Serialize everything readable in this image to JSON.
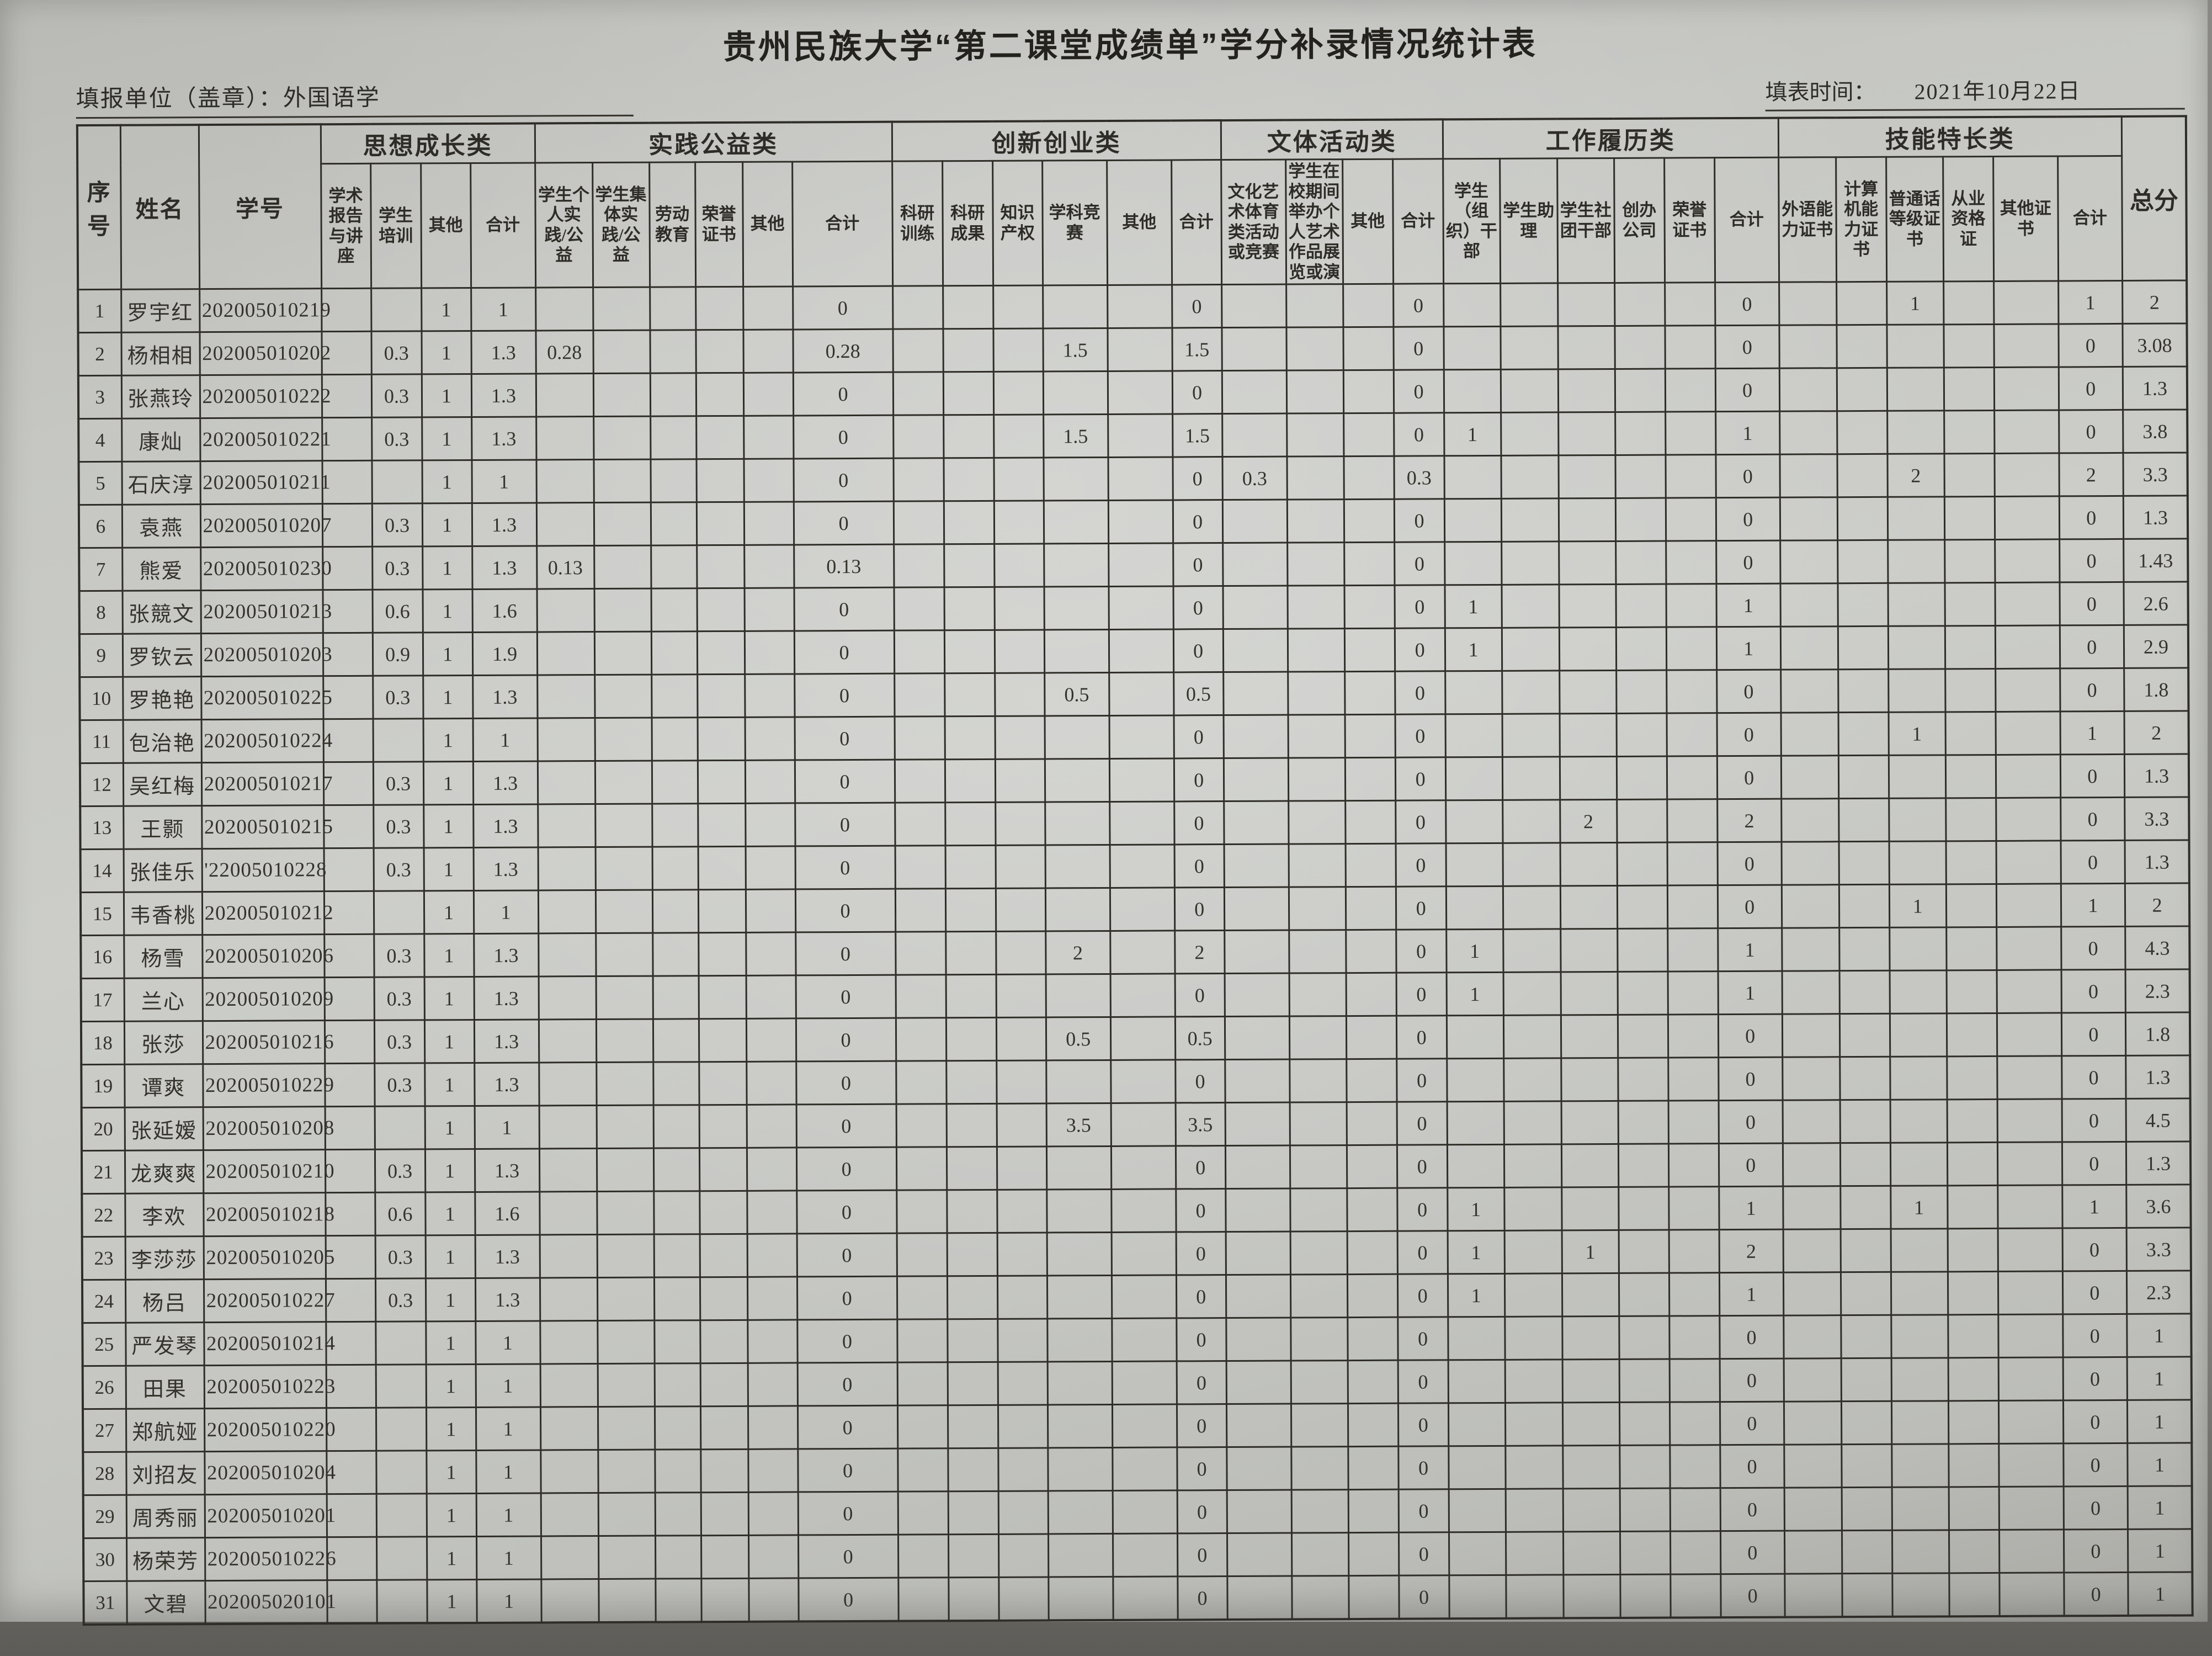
{
  "title": "贵州民族大学“第二课堂成绩单”学分补录情况统计表",
  "meta": {
    "unit_label": "填报单位（盖章）：",
    "unit_value": "外国语学",
    "time_label": "填表时间：",
    "time_value": "2021年10月22日"
  },
  "table": {
    "header": {
      "fixed": [
        "序号",
        "姓名",
        "学号"
      ],
      "groups": [
        {
          "label": "思想成长类",
          "cols": [
            "学术报告与讲座",
            "学生培训",
            "其他",
            "合计"
          ]
        },
        {
          "label": "实践公益类",
          "cols": [
            "学生个人实践/公益",
            "学生集体实践/公益",
            "劳动教育",
            "荣誉证书",
            "其他",
            "合计"
          ]
        },
        {
          "label": "创新创业类",
          "cols": [
            "科研训练",
            "科研成果",
            "知识产权",
            "学科竞赛",
            "其他",
            "合计"
          ]
        },
        {
          "label": "文体活动类",
          "cols": [
            "文化艺术体育类活动或竞赛",
            "学生在校期间举办个人艺术作品展览或演",
            "其他",
            "合计"
          ]
        },
        {
          "label": "工作履历类",
          "cols": [
            "学生（组织）干部",
            "学生助理",
            "学生社团干部",
            "创办公司",
            "荣誉证书",
            "合计"
          ]
        },
        {
          "label": "技能特长类",
          "cols": [
            "外语能力证书",
            "计算机能力证书",
            "普通话等级证书",
            "从业资格证",
            "其他证书",
            "合计"
          ]
        }
      ],
      "total": "总分"
    },
    "rows": [
      [
        "1",
        "罗宇红",
        "202005010219",
        "",
        "",
        "1",
        "1",
        "",
        "",
        "",
        "",
        "",
        "0",
        "",
        "",
        "",
        "",
        "",
        "0",
        "",
        "",
        "",
        "0",
        "",
        "",
        "",
        "",
        "",
        "0",
        "",
        "",
        "1",
        "",
        "",
        "1",
        "2"
      ],
      [
        "2",
        "杨相相",
        "202005010202",
        "",
        "0.3",
        "1",
        "1.3",
        "0.28",
        "",
        "",
        "",
        "",
        "0.28",
        "",
        "",
        "",
        "1.5",
        "",
        "1.5",
        "",
        "",
        "",
        "0",
        "",
        "",
        "",
        "",
        "",
        "0",
        "",
        "",
        "",
        "",
        "",
        "0",
        "3.08"
      ],
      [
        "3",
        "张燕玲",
        "202005010222",
        "",
        "0.3",
        "1",
        "1.3",
        "",
        "",
        "",
        "",
        "",
        "0",
        "",
        "",
        "",
        "",
        "",
        "0",
        "",
        "",
        "",
        "0",
        "",
        "",
        "",
        "",
        "",
        "0",
        "",
        "",
        "",
        "",
        "",
        "0",
        "1.3"
      ],
      [
        "4",
        "康灿",
        "202005010221",
        "",
        "0.3",
        "1",
        "1.3",
        "",
        "",
        "",
        "",
        "",
        "0",
        "",
        "",
        "",
        "1.5",
        "",
        "1.5",
        "",
        "",
        "",
        "0",
        "1",
        "",
        "",
        "",
        "",
        "1",
        "",
        "",
        "",
        "",
        "",
        "0",
        "3.8"
      ],
      [
        "5",
        "石庆淳",
        "202005010211",
        "",
        "",
        "1",
        "1",
        "",
        "",
        "",
        "",
        "",
        "0",
        "",
        "",
        "",
        "",
        "",
        "0",
        "0.3",
        "",
        "",
        "0.3",
        "",
        "",
        "",
        "",
        "",
        "0",
        "",
        "",
        "2",
        "",
        "",
        "2",
        "3.3"
      ],
      [
        "6",
        "袁燕",
        "202005010207",
        "",
        "0.3",
        "1",
        "1.3",
        "",
        "",
        "",
        "",
        "",
        "0",
        "",
        "",
        "",
        "",
        "",
        "0",
        "",
        "",
        "",
        "0",
        "",
        "",
        "",
        "",
        "",
        "0",
        "",
        "",
        "",
        "",
        "",
        "0",
        "1.3"
      ],
      [
        "7",
        "熊爱",
        "202005010230",
        "",
        "0.3",
        "1",
        "1.3",
        "0.13",
        "",
        "",
        "",
        "",
        "0.13",
        "",
        "",
        "",
        "",
        "",
        "0",
        "",
        "",
        "",
        "0",
        "",
        "",
        "",
        "",
        "",
        "0",
        "",
        "",
        "",
        "",
        "",
        "0",
        "1.43"
      ],
      [
        "8",
        "张競文",
        "202005010213",
        "",
        "0.6",
        "1",
        "1.6",
        "",
        "",
        "",
        "",
        "",
        "0",
        "",
        "",
        "",
        "",
        "",
        "0",
        "",
        "",
        "",
        "0",
        "1",
        "",
        "",
        "",
        "",
        "1",
        "",
        "",
        "",
        "",
        "",
        "0",
        "2.6"
      ],
      [
        "9",
        "罗钦云",
        "202005010203",
        "",
        "0.9",
        "1",
        "1.9",
        "",
        "",
        "",
        "",
        "",
        "0",
        "",
        "",
        "",
        "",
        "",
        "0",
        "",
        "",
        "",
        "0",
        "1",
        "",
        "",
        "",
        "",
        "1",
        "",
        "",
        "",
        "",
        "",
        "0",
        "2.9"
      ],
      [
        "10",
        "罗艳艳",
        "202005010225",
        "",
        "0.3",
        "1",
        "1.3",
        "",
        "",
        "",
        "",
        "",
        "0",
        "",
        "",
        "",
        "0.5",
        "",
        "0.5",
        "",
        "",
        "",
        "0",
        "",
        "",
        "",
        "",
        "",
        "0",
        "",
        "",
        "",
        "",
        "",
        "0",
        "1.8"
      ],
      [
        "11",
        "包治艳",
        "202005010224",
        "",
        "",
        "1",
        "1",
        "",
        "",
        "",
        "",
        "",
        "0",
        "",
        "",
        "",
        "",
        "",
        "0",
        "",
        "",
        "",
        "0",
        "",
        "",
        "",
        "",
        "",
        "0",
        "",
        "",
        "1",
        "",
        "",
        "1",
        "2"
      ],
      [
        "12",
        "吴红梅",
        "202005010217",
        "",
        "0.3",
        "1",
        "1.3",
        "",
        "",
        "",
        "",
        "",
        "0",
        "",
        "",
        "",
        "",
        "",
        "0",
        "",
        "",
        "",
        "0",
        "",
        "",
        "",
        "",
        "",
        "0",
        "",
        "",
        "",
        "",
        "",
        "0",
        "1.3"
      ],
      [
        "13",
        "王颢",
        "202005010215",
        "",
        "0.3",
        "1",
        "1.3",
        "",
        "",
        "",
        "",
        "",
        "0",
        "",
        "",
        "",
        "",
        "",
        "0",
        "",
        "",
        "",
        "0",
        "",
        "",
        "2",
        "",
        "",
        "2",
        "",
        "",
        "",
        "",
        "",
        "0",
        "3.3"
      ],
      [
        "14",
        "张佳乐",
        "'22005010228",
        "",
        "0.3",
        "1",
        "1.3",
        "",
        "",
        "",
        "",
        "",
        "0",
        "",
        "",
        "",
        "",
        "",
        "0",
        "",
        "",
        "",
        "0",
        "",
        "",
        "",
        "",
        "",
        "0",
        "",
        "",
        "",
        "",
        "",
        "0",
        "1.3"
      ],
      [
        "15",
        "韦香桃",
        "202005010212",
        "",
        "",
        "1",
        "1",
        "",
        "",
        "",
        "",
        "",
        "0",
        "",
        "",
        "",
        "",
        "",
        "0",
        "",
        "",
        "",
        "0",
        "",
        "",
        "",
        "",
        "",
        "0",
        "",
        "",
        "1",
        "",
        "",
        "1",
        "2"
      ],
      [
        "16",
        "杨雪",
        "202005010206",
        "",
        "0.3",
        "1",
        "1.3",
        "",
        "",
        "",
        "",
        "",
        "0",
        "",
        "",
        "",
        "2",
        "",
        "2",
        "",
        "",
        "",
        "0",
        "1",
        "",
        "",
        "",
        "",
        "1",
        "",
        "",
        "",
        "",
        "",
        "0",
        "4.3"
      ],
      [
        "17",
        "兰心",
        "202005010209",
        "",
        "0.3",
        "1",
        "1.3",
        "",
        "",
        "",
        "",
        "",
        "0",
        "",
        "",
        "",
        "",
        "",
        "0",
        "",
        "",
        "",
        "0",
        "1",
        "",
        "",
        "",
        "",
        "1",
        "",
        "",
        "",
        "",
        "",
        "0",
        "2.3"
      ],
      [
        "18",
        "张莎",
        "202005010216",
        "",
        "0.3",
        "1",
        "1.3",
        "",
        "",
        "",
        "",
        "",
        "0",
        "",
        "",
        "",
        "0.5",
        "",
        "0.5",
        "",
        "",
        "",
        "0",
        "",
        "",
        "",
        "",
        "",
        "0",
        "",
        "",
        "",
        "",
        "",
        "0",
        "1.8"
      ],
      [
        "19",
        "谭爽",
        "202005010229",
        "",
        "0.3",
        "1",
        "1.3",
        "",
        "",
        "",
        "",
        "",
        "0",
        "",
        "",
        "",
        "",
        "",
        "0",
        "",
        "",
        "",
        "0",
        "",
        "",
        "",
        "",
        "",
        "0",
        "",
        "",
        "",
        "",
        "",
        "0",
        "1.3"
      ],
      [
        "20",
        "张延嫒",
        "202005010208",
        "",
        "",
        "1",
        "1",
        "",
        "",
        "",
        "",
        "",
        "0",
        "",
        "",
        "",
        "3.5",
        "",
        "3.5",
        "",
        "",
        "",
        "0",
        "",
        "",
        "",
        "",
        "",
        "0",
        "",
        "",
        "",
        "",
        "",
        "0",
        "4.5"
      ],
      [
        "21",
        "龙爽爽",
        "202005010210",
        "",
        "0.3",
        "1",
        "1.3",
        "",
        "",
        "",
        "",
        "",
        "0",
        "",
        "",
        "",
        "",
        "",
        "0",
        "",
        "",
        "",
        "0",
        "",
        "",
        "",
        "",
        "",
        "0",
        "",
        "",
        "",
        "",
        "",
        "0",
        "1.3"
      ],
      [
        "22",
        "李欢",
        "202005010218",
        "",
        "0.6",
        "1",
        "1.6",
        "",
        "",
        "",
        "",
        "",
        "0",
        "",
        "",
        "",
        "",
        "",
        "0",
        "",
        "",
        "",
        "0",
        "1",
        "",
        "",
        "",
        "",
        "1",
        "",
        "",
        "1",
        "",
        "",
        "1",
        "3.6"
      ],
      [
        "23",
        "李莎莎",
        "202005010205",
        "",
        "0.3",
        "1",
        "1.3",
        "",
        "",
        "",
        "",
        "",
        "0",
        "",
        "",
        "",
        "",
        "",
        "0",
        "",
        "",
        "",
        "0",
        "1",
        "",
        "1",
        "",
        "",
        "2",
        "",
        "",
        "",
        "",
        "",
        "0",
        "3.3"
      ],
      [
        "24",
        "杨吕",
        "202005010227",
        "",
        "0.3",
        "1",
        "1.3",
        "",
        "",
        "",
        "",
        "",
        "0",
        "",
        "",
        "",
        "",
        "",
        "0",
        "",
        "",
        "",
        "0",
        "1",
        "",
        "",
        "",
        "",
        "1",
        "",
        "",
        "",
        "",
        "",
        "0",
        "2.3"
      ],
      [
        "25",
        "严发琴",
        "202005010214",
        "",
        "",
        "1",
        "1",
        "",
        "",
        "",
        "",
        "",
        "0",
        "",
        "",
        "",
        "",
        "",
        "0",
        "",
        "",
        "",
        "0",
        "",
        "",
        "",
        "",
        "",
        "0",
        "",
        "",
        "",
        "",
        "",
        "0",
        "1"
      ],
      [
        "26",
        "田果",
        "202005010223",
        "",
        "",
        "1",
        "1",
        "",
        "",
        "",
        "",
        "",
        "0",
        "",
        "",
        "",
        "",
        "",
        "0",
        "",
        "",
        "",
        "0",
        "",
        "",
        "",
        "",
        "",
        "0",
        "",
        "",
        "",
        "",
        "",
        "0",
        "1"
      ],
      [
        "27",
        "郑航娅",
        "202005010220",
        "",
        "",
        "1",
        "1",
        "",
        "",
        "",
        "",
        "",
        "0",
        "",
        "",
        "",
        "",
        "",
        "0",
        "",
        "",
        "",
        "0",
        "",
        "",
        "",
        "",
        "",
        "0",
        "",
        "",
        "",
        "",
        "",
        "0",
        "1"
      ],
      [
        "28",
        "刘招友",
        "202005010204",
        "",
        "",
        "1",
        "1",
        "",
        "",
        "",
        "",
        "",
        "0",
        "",
        "",
        "",
        "",
        "",
        "0",
        "",
        "",
        "",
        "0",
        "",
        "",
        "",
        "",
        "",
        "0",
        "",
        "",
        "",
        "",
        "",
        "0",
        "1"
      ],
      [
        "29",
        "周秀丽",
        "202005010201",
        "",
        "",
        "1",
        "1",
        "",
        "",
        "",
        "",
        "",
        "0",
        "",
        "",
        "",
        "",
        "",
        "0",
        "",
        "",
        "",
        "0",
        "",
        "",
        "",
        "",
        "",
        "0",
        "",
        "",
        "",
        "",
        "",
        "0",
        "1"
      ],
      [
        "30",
        "杨荣芳",
        "202005010226",
        "",
        "",
        "1",
        "1",
        "",
        "",
        "",
        "",
        "",
        "0",
        "",
        "",
        "",
        "",
        "",
        "0",
        "",
        "",
        "",
        "0",
        "",
        "",
        "",
        "",
        "",
        "0",
        "",
        "",
        "",
        "",
        "",
        "0",
        "1"
      ],
      [
        "31",
        "文碧",
        "202005020101",
        "",
        "",
        "1",
        "1",
        "",
        "",
        "",
        "",
        "",
        "0",
        "",
        "",
        "",
        "",
        "",
        "0",
        "",
        "",
        "",
        "0",
        "",
        "",
        "",
        "",
        "",
        "0",
        "",
        "",
        "",
        "",
        "",
        "0",
        "1"
      ]
    ]
  }
}
